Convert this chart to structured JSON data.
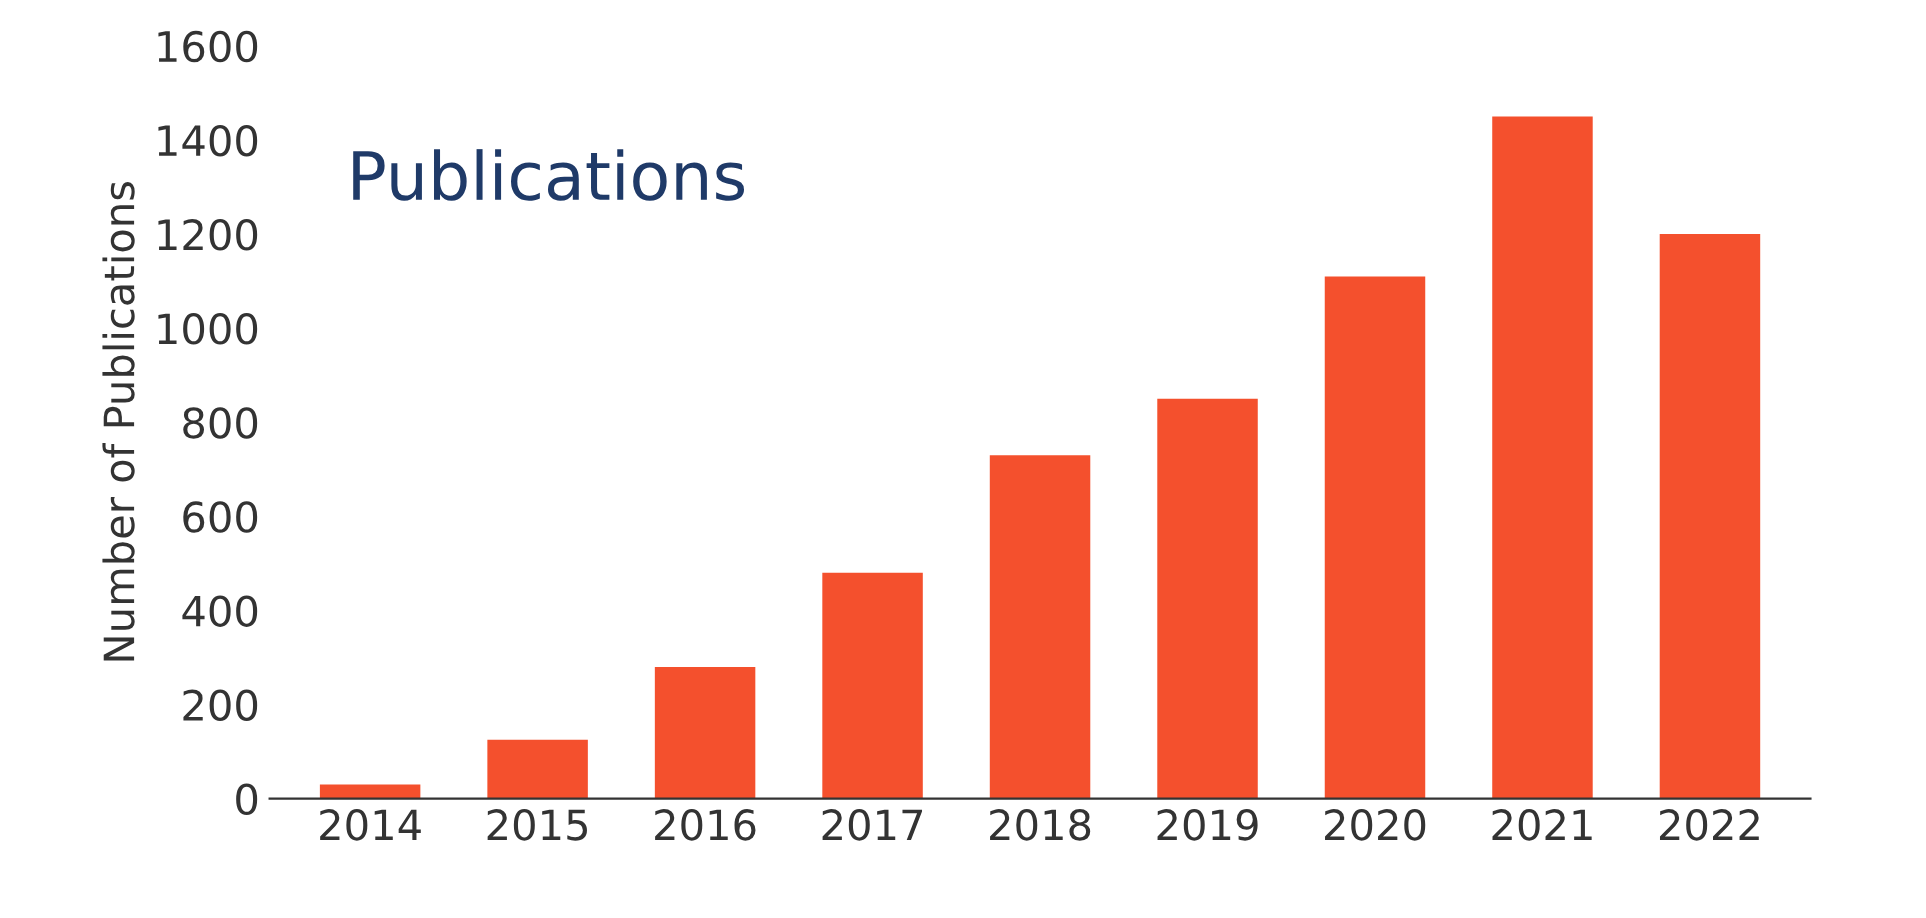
{
  "chart_data": {
    "type": "bar",
    "title": "Publications",
    "ylabel": "Number of Publications",
    "categories": [
      "2014",
      "2015",
      "2016",
      "2017",
      "2018",
      "2019",
      "2020",
      "2021",
      "2022"
    ],
    "values": [
      30,
      125,
      280,
      480,
      730,
      850,
      1110,
      1450,
      1200
    ],
    "color": "#f4502d",
    "ylim": [
      0,
      1600
    ],
    "yticks": [
      0,
      200,
      400,
      600,
      800,
      1000,
      1200,
      1400,
      1600
    ],
    "grid": false
  }
}
